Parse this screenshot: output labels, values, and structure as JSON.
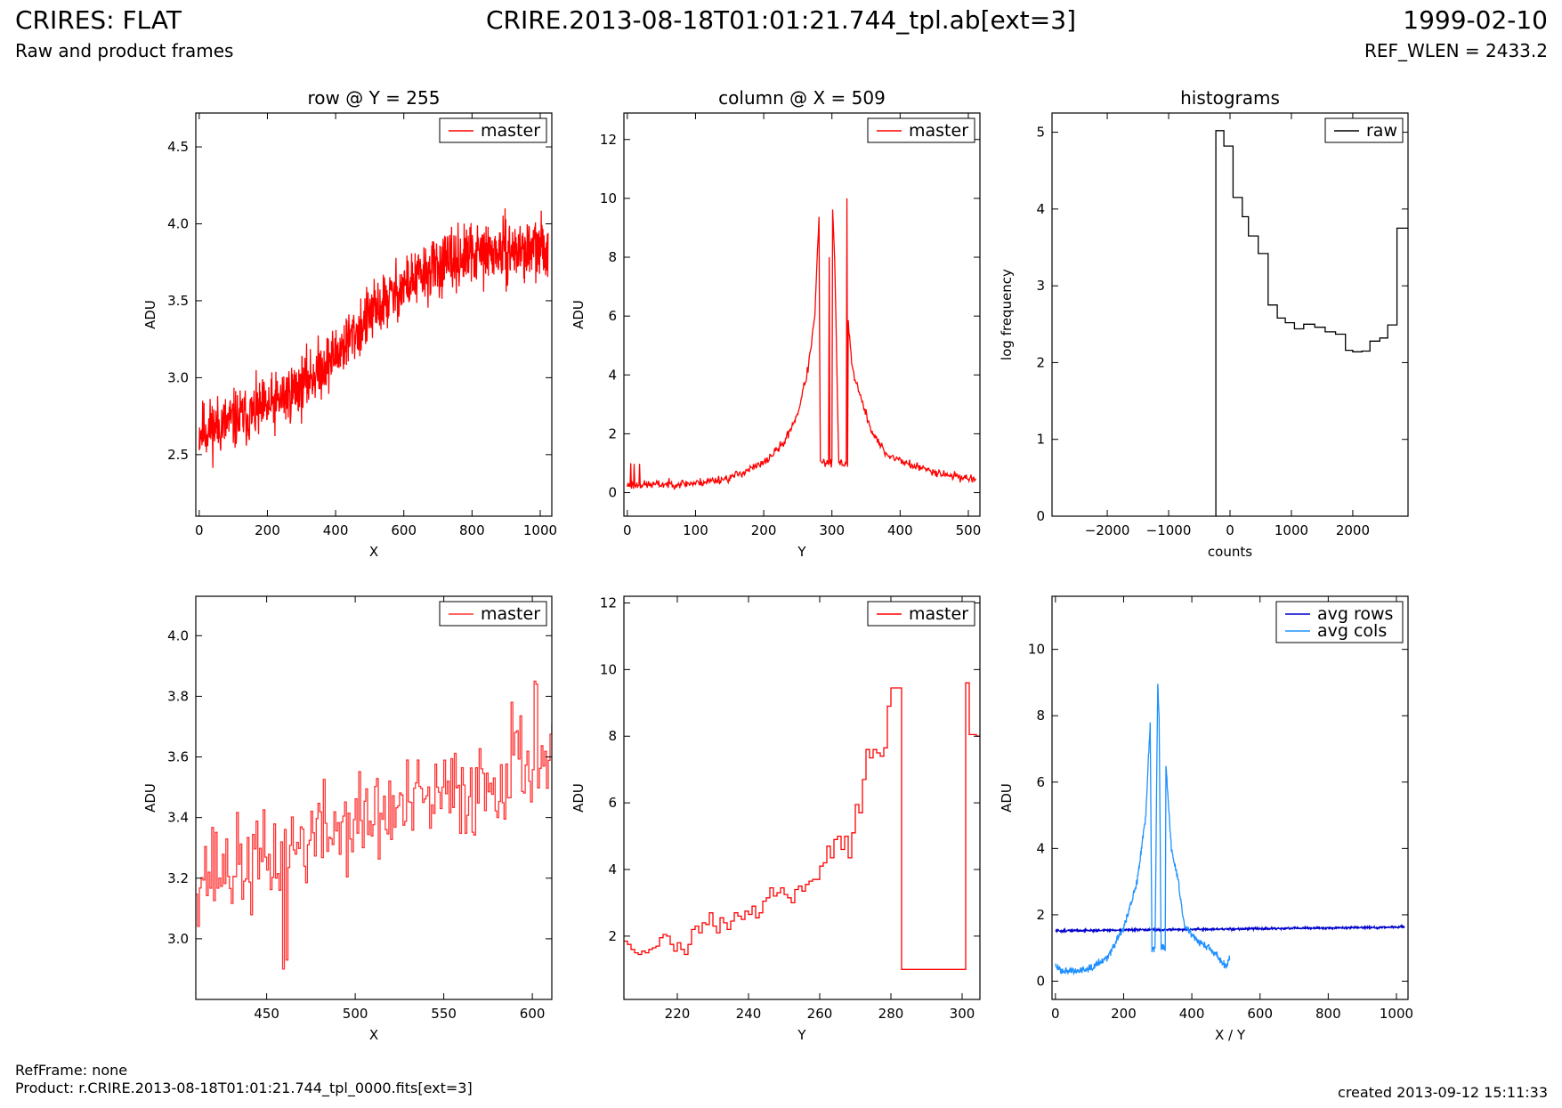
{
  "header": {
    "title": "CRIRES: FLAT",
    "subtitle": "Raw and product frames",
    "file": "CRIRE.2013-08-18T01:01:21.744_tpl.ab[ext=3]",
    "date": "1999-02-10",
    "ref_wlen": "REF_WLEN = 2433.2"
  },
  "footer": {
    "ref_frame": "RefFrame: none",
    "product": "Product: r.CRIRE.2013-08-18T01:01:21.744_tpl_0000.fits[ext=3]",
    "created": "created 2013-09-12 15:11:33"
  },
  "colors": {
    "master": "#ff0000",
    "raw": "#000000",
    "avg_rows": "#0000cc",
    "avg_cols": "#1e90ff"
  },
  "chart_data": [
    {
      "type": "line",
      "title": "row @ Y = 255",
      "xlabel": "X",
      "ylabel": "ADU",
      "xlim": [
        -10,
        1034
      ],
      "ylim": [
        2.1,
        4.72
      ],
      "xticks": [
        0,
        200,
        400,
        600,
        800,
        1000
      ],
      "yticks": [
        2.5,
        3.0,
        3.5,
        4.0,
        4.5
      ],
      "ytick_decimals": 1,
      "legend": "top-right",
      "series": [
        {
          "name": "master",
          "color": "#ff0000",
          "style": "line",
          "anchors": [
            [
              0,
              2.65
            ],
            [
              100,
              2.72
            ],
            [
              200,
              2.8
            ],
            [
              300,
              2.95
            ],
            [
              400,
              3.15
            ],
            [
              500,
              3.4
            ],
            [
              600,
              3.6
            ],
            [
              700,
              3.72
            ],
            [
              800,
              3.8
            ],
            [
              900,
              3.82
            ],
            [
              1023,
              3.84
            ]
          ],
          "n": 1024,
          "x0": 0,
          "dx": 1,
          "noise": 0.17,
          "seed": 11
        }
      ]
    },
    {
      "type": "line",
      "title": "column @ X = 509",
      "xlabel": "Y",
      "ylabel": "ADU",
      "xlim": [
        -5,
        517
      ],
      "ylim": [
        -0.8,
        12.9
      ],
      "xticks": [
        0,
        100,
        200,
        300,
        400,
        500
      ],
      "yticks": [
        0,
        2,
        4,
        6,
        8,
        10,
        12
      ],
      "ytick_decimals": 0,
      "legend": "top-right",
      "series": [
        {
          "name": "master",
          "color": "#ff0000",
          "style": "line",
          "anchors": [
            [
              0,
              0.25
            ],
            [
              50,
              0.28
            ],
            [
              100,
              0.32
            ],
            [
              150,
              0.5
            ],
            [
              200,
              1.0
            ],
            [
              230,
              1.7
            ],
            [
              250,
              2.7
            ],
            [
              265,
              4.2
            ],
            [
              275,
              6.0
            ],
            [
              281,
              9.4
            ],
            [
              283,
              1.0
            ],
            [
              300,
              1.0
            ],
            [
              301,
              9.6
            ],
            [
              304,
              8.0
            ],
            [
              310,
              1.0
            ],
            [
              323,
              1.0
            ],
            [
              324,
              5.8
            ],
            [
              330,
              4.2
            ],
            [
              345,
              3.0
            ],
            [
              360,
              2.0
            ],
            [
              380,
              1.3
            ],
            [
              420,
              0.9
            ],
            [
              470,
              0.6
            ],
            [
              511,
              0.45
            ]
          ],
          "n": 512,
          "x0": 0,
          "dx": 1,
          "noise": 0.13,
          "seed": 23,
          "spikes": [
            [
              5,
              1.0
            ],
            [
              10,
              0.98
            ],
            [
              18,
              0.98
            ],
            [
              296,
              8.0
            ],
            [
              322,
              10.0
            ]
          ]
        }
      ]
    },
    {
      "type": "line",
      "title": "histograms",
      "xlabel": "counts",
      "ylabel": "log frequency",
      "xlim": [
        -2900,
        2900
      ],
      "ylim": [
        0,
        5.25
      ],
      "xticks": [
        -2000,
        -1000,
        0,
        1000,
        2000
      ],
      "yticks": [
        0,
        1,
        2,
        3,
        4,
        5
      ],
      "ytick_decimals": 0,
      "legend": "top-right",
      "series": [
        {
          "name": "raw",
          "color": "#000000",
          "style": "steps",
          "points": [
            [
              -230,
              0
            ],
            [
              -230,
              5.02
            ],
            [
              -100,
              5.02
            ],
            [
              -100,
              4.82
            ],
            [
              50,
              4.82
            ],
            [
              50,
              4.15
            ],
            [
              200,
              4.15
            ],
            [
              200,
              3.9
            ],
            [
              300,
              3.9
            ],
            [
              300,
              3.65
            ],
            [
              460,
              3.65
            ],
            [
              460,
              3.42
            ],
            [
              620,
              3.42
            ],
            [
              620,
              2.75
            ],
            [
              770,
              2.75
            ],
            [
              770,
              2.58
            ],
            [
              900,
              2.58
            ],
            [
              900,
              2.52
            ],
            [
              1050,
              2.52
            ],
            [
              1050,
              2.44
            ],
            [
              1200,
              2.44
            ],
            [
              1200,
              2.5
            ],
            [
              1380,
              2.5
            ],
            [
              1380,
              2.46
            ],
            [
              1550,
              2.46
            ],
            [
              1550,
              2.4
            ],
            [
              1720,
              2.4
            ],
            [
              1720,
              2.37
            ],
            [
              1880,
              2.37
            ],
            [
              1880,
              2.16
            ],
            [
              2000,
              2.16
            ],
            [
              2000,
              2.14
            ],
            [
              2150,
              2.14
            ],
            [
              2150,
              2.15
            ],
            [
              2280,
              2.15
            ],
            [
              2280,
              2.28
            ],
            [
              2440,
              2.28
            ],
            [
              2440,
              2.32
            ],
            [
              2570,
              2.32
            ],
            [
              2570,
              2.49
            ],
            [
              2720,
              2.49
            ],
            [
              2720,
              3.75
            ],
            [
              2900,
              3.75
            ]
          ]
        }
      ]
    },
    {
      "type": "line",
      "title": "",
      "xlabel": "X",
      "ylabel": "ADU",
      "xlim": [
        410,
        611
      ],
      "ylim": [
        2.8,
        4.13
      ],
      "xticks": [
        450,
        500,
        550,
        600
      ],
      "yticks": [
        3.0,
        3.2,
        3.4,
        3.6,
        3.8,
        4.0
      ],
      "ytick_decimals": 1,
      "legend": "top-right",
      "series": [
        {
          "name": "master",
          "color": "#ff3333",
          "style": "steps",
          "anchors": [
            [
              410,
              3.22
            ],
            [
              450,
              3.25
            ],
            [
              480,
              3.35
            ],
            [
              510,
              3.4
            ],
            [
              540,
              3.45
            ],
            [
              570,
              3.5
            ],
            [
              600,
              3.6
            ],
            [
              611,
              3.6
            ]
          ],
          "n": 202,
          "x0": 410,
          "dx": 1,
          "noise": 0.14,
          "seed": 37,
          "spikes": [
            [
              459,
              2.9
            ],
            [
              461,
              2.93
            ],
            [
              588,
              3.78
            ],
            [
              601,
              3.85
            ],
            [
              602,
              3.84
            ]
          ]
        }
      ]
    },
    {
      "type": "line",
      "title": "",
      "xlabel": "Y",
      "ylabel": "ADU",
      "xlim": [
        205,
        305
      ],
      "ylim": [
        0.1,
        12.2
      ],
      "xticks": [
        220,
        240,
        260,
        280,
        300
      ],
      "yticks": [
        2,
        4,
        6,
        8,
        10,
        12
      ],
      "ytick_decimals": 0,
      "legend": "top-right",
      "series": [
        {
          "name": "master",
          "color": "#ff0000",
          "style": "steps",
          "points": [
            [
              205,
              1.85
            ],
            [
              206,
              1.75
            ],
            [
              207,
              1.6
            ],
            [
              208,
              1.5
            ],
            [
              209,
              1.45
            ],
            [
              210,
              1.55
            ],
            [
              211,
              1.5
            ],
            [
              212,
              1.6
            ],
            [
              213,
              1.65
            ],
            [
              214,
              1.7
            ],
            [
              215,
              1.95
            ],
            [
              216,
              2.05
            ],
            [
              217,
              2.0
            ],
            [
              218,
              1.75
            ],
            [
              219,
              1.55
            ],
            [
              220,
              1.8
            ],
            [
              221,
              1.6
            ],
            [
              222,
              1.45
            ],
            [
              223,
              1.75
            ],
            [
              224,
              2.2
            ],
            [
              225,
              2.3
            ],
            [
              226,
              2.1
            ],
            [
              227,
              2.4
            ],
            [
              228,
              2.35
            ],
            [
              229,
              2.7
            ],
            [
              230,
              2.3
            ],
            [
              231,
              2.1
            ],
            [
              232,
              2.55
            ],
            [
              233,
              2.4
            ],
            [
              234,
              2.2
            ],
            [
              235,
              2.45
            ],
            [
              236,
              2.7
            ],
            [
              237,
              2.6
            ],
            [
              238,
              2.5
            ],
            [
              239,
              2.75
            ],
            [
              240,
              2.65
            ],
            [
              241,
              2.9
            ],
            [
              242,
              2.55
            ],
            [
              243,
              2.7
            ],
            [
              244,
              3.05
            ],
            [
              245,
              3.15
            ],
            [
              246,
              3.45
            ],
            [
              247,
              3.2
            ],
            [
              248,
              3.3
            ],
            [
              249,
              3.45
            ],
            [
              250,
              3.25
            ],
            [
              251,
              3.15
            ],
            [
              252,
              3.0
            ],
            [
              253,
              3.4
            ],
            [
              254,
              3.5
            ],
            [
              255,
              3.35
            ],
            [
              256,
              3.55
            ],
            [
              257,
              3.65
            ],
            [
              258,
              3.7
            ],
            [
              259,
              3.7
            ],
            [
              260,
              4.1
            ],
            [
              261,
              4.2
            ],
            [
              262,
              4.7
            ],
            [
              263,
              4.35
            ],
            [
              264,
              4.9
            ],
            [
              265,
              5.0
            ],
            [
              266,
              4.6
            ],
            [
              267,
              5.0
            ],
            [
              268,
              4.35
            ],
            [
              269,
              5.1
            ],
            [
              270,
              5.95
            ],
            [
              271,
              5.7
            ],
            [
              272,
              6.7
            ],
            [
              273,
              7.6
            ],
            [
              274,
              7.35
            ],
            [
              275,
              7.6
            ],
            [
              276,
              7.5
            ],
            [
              277,
              7.4
            ],
            [
              278,
              7.65
            ],
            [
              279,
              8.9
            ],
            [
              280,
              9.45
            ],
            [
              281,
              9.45
            ],
            [
              282,
              9.45
            ],
            [
              283,
              1.0
            ],
            [
              300,
              1.0
            ],
            [
              301,
              9.6
            ],
            [
              302,
              8.05
            ],
            [
              303,
              8.05
            ],
            [
              304,
              8.0
            ],
            [
              305,
              8.0
            ]
          ]
        }
      ]
    },
    {
      "type": "line",
      "title": "",
      "xlabel": "X / Y",
      "ylabel": "ADU",
      "xlim": [
        -10,
        1034
      ],
      "ylim": [
        -0.55,
        11.6
      ],
      "xticks": [
        0,
        200,
        400,
        600,
        800,
        1000
      ],
      "yticks": [
        0,
        2,
        4,
        6,
        8,
        10
      ],
      "ytick_decimals": 0,
      "legend": "top-right",
      "series": [
        {
          "name": "avg rows",
          "color": "#0000cc",
          "style": "line",
          "anchors": [
            [
              0,
              1.52
            ],
            [
              300,
              1.55
            ],
            [
              600,
              1.58
            ],
            [
              1023,
              1.63
            ]
          ],
          "n": 1024,
          "x0": 0,
          "dx": 1,
          "noise": 0.03,
          "seed": 51
        },
        {
          "name": "avg cols",
          "color": "#1e90ff",
          "style": "line",
          "anchors": [
            [
              0,
              0.45
            ],
            [
              20,
              0.33
            ],
            [
              60,
              0.3
            ],
            [
              100,
              0.4
            ],
            [
              150,
              0.7
            ],
            [
              200,
              1.6
            ],
            [
              240,
              3.0
            ],
            [
              265,
              5.0
            ],
            [
              278,
              7.8
            ],
            [
              283,
              1.0
            ],
            [
              292,
              1.0
            ],
            [
              300,
              9.0
            ],
            [
              304,
              8.0
            ],
            [
              310,
              1.0
            ],
            [
              322,
              1.0
            ],
            [
              324,
              6.5
            ],
            [
              340,
              4.0
            ],
            [
              360,
              3.0
            ],
            [
              380,
              1.6
            ],
            [
              420,
              1.2
            ],
            [
              450,
              1.0
            ],
            [
              480,
              0.7
            ],
            [
              500,
              0.45
            ],
            [
              511,
              0.75
            ]
          ],
          "n": 512,
          "x0": 0,
          "dx": 1,
          "noise": 0.1,
          "seed": 63
        }
      ]
    }
  ]
}
